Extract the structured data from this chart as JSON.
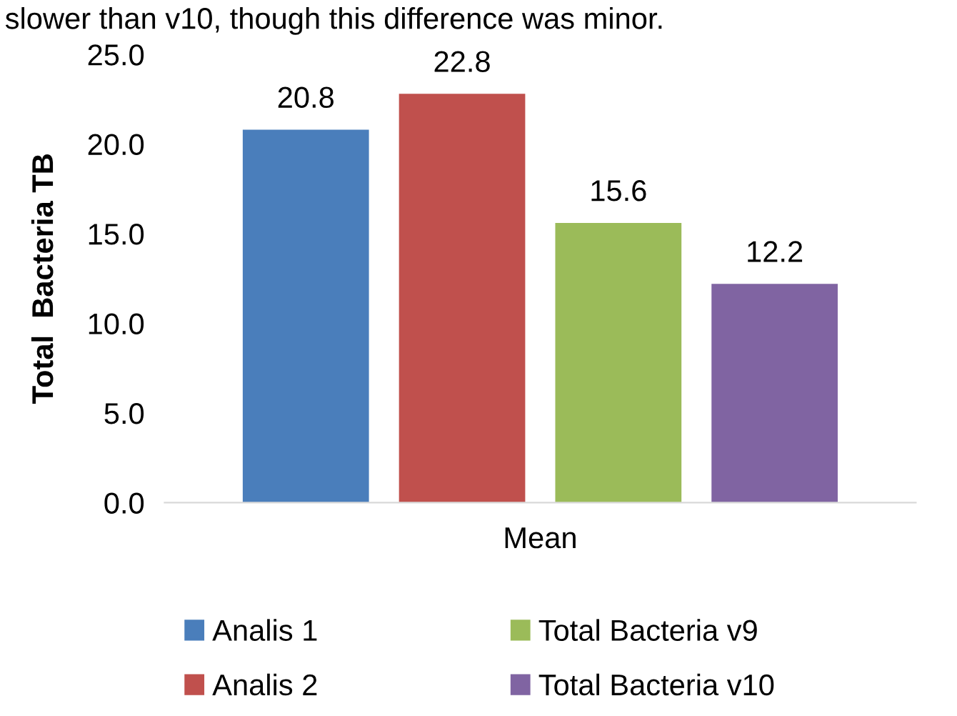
{
  "chart_data": {
    "type": "bar",
    "ylabel": "Total  Bacteria TB",
    "categories": [
      "Mean"
    ],
    "series": [
      {
        "name": "Analis 1",
        "color": "#4a7ebb",
        "values": [
          20.8
        ]
      },
      {
        "name": "Analis 2",
        "color": "#c0504d",
        "values": [
          22.8
        ]
      },
      {
        "name": "Total Bacteria v9",
        "color": "#9bbb59",
        "values": [
          15.6
        ]
      },
      {
        "name": "Total Bacteria v10",
        "color": "#8064a2",
        "values": [
          12.2
        ]
      }
    ],
    "ylim": [
      0,
      25
    ],
    "yticks": [
      {
        "value": 0,
        "label": "0.0"
      },
      {
        "value": 5,
        "label": "5.0"
      },
      {
        "value": 10,
        "label": "10.0"
      },
      {
        "value": 15,
        "label": "15.0"
      },
      {
        "value": 20,
        "label": "20.0"
      },
      {
        "value": 25,
        "label": "25.0"
      }
    ],
    "data_labels": true,
    "grid": false,
    "legend": "bottom",
    "annotations": [
      "slower than v10, though this difference was minor."
    ]
  }
}
